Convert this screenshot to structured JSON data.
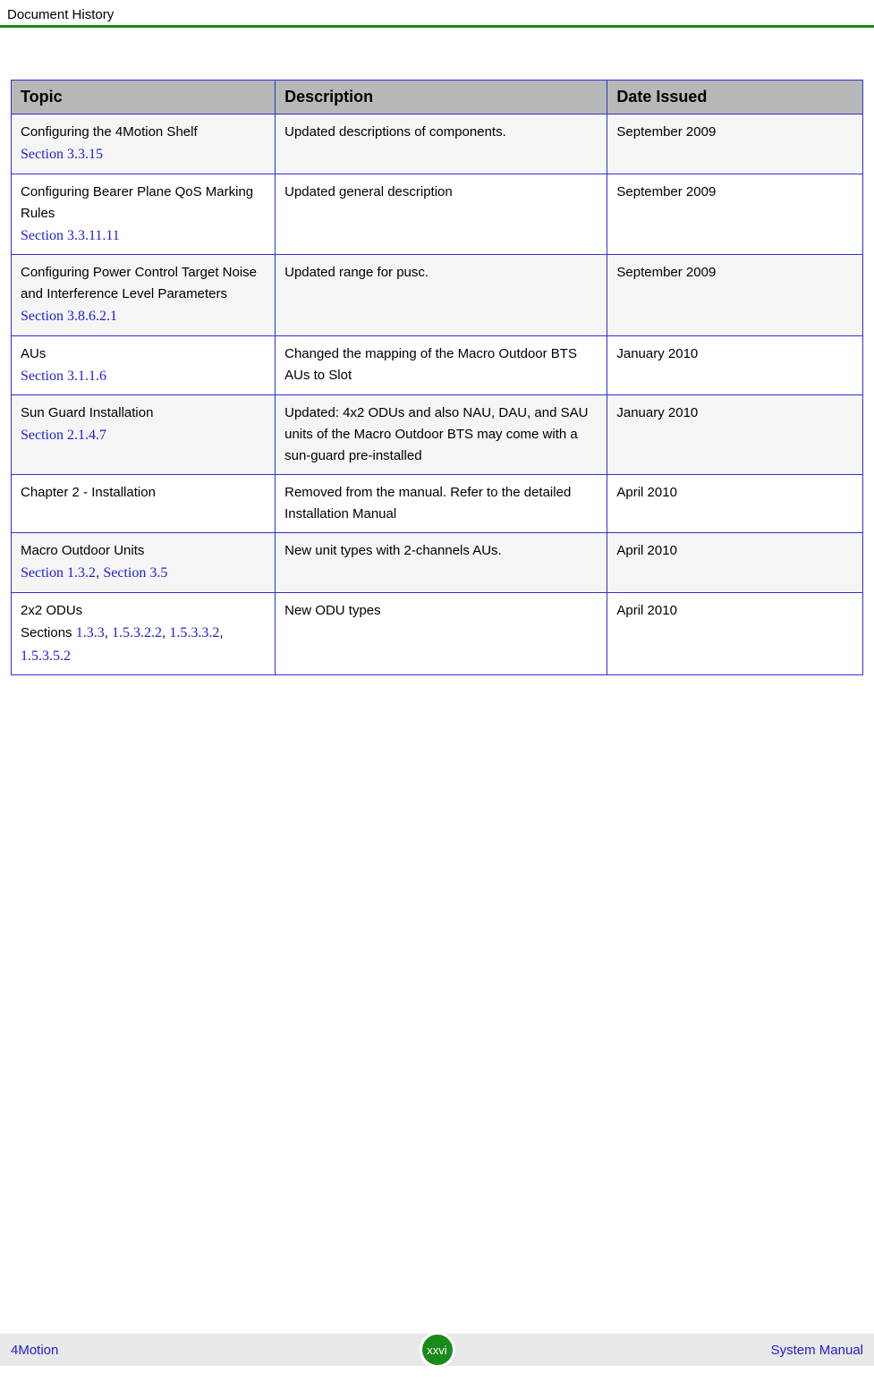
{
  "header": {
    "title": "Document History"
  },
  "table": {
    "headers": {
      "topic": "Topic",
      "description": "Description",
      "date": "Date Issued"
    },
    "rows": [
      {
        "topic_text": "Configuring the 4Motion Shelf",
        "section_links": [
          "Section 3.3.15"
        ],
        "description": "Updated descriptions of components.",
        "date": "September 2009"
      },
      {
        "topic_text": "Configuring Bearer Plane QoS Marking Rules",
        "section_links": [
          "Section 3.3.11.11"
        ],
        "description": "Updated general description",
        "date": "September 2009"
      },
      {
        "topic_text": "Configuring Power Control Target Noise and Interference Level Parameters",
        "section_links": [
          "Section 3.8.6.2.1"
        ],
        "description": "Updated range for pusc.",
        "date": "September 2009"
      },
      {
        "topic_text": "AUs",
        "section_links": [
          "Section 3.1.1.6"
        ],
        "description": "Changed the mapping of the Macro Outdoor BTS AUs to Slot",
        "date": "January 2010"
      },
      {
        "topic_text": "Sun Guard Installation",
        "section_links": [
          "Section 2.1.4.7"
        ],
        "description": "Updated: 4x2 ODUs and also NAU, DAU, and SAU units of the Macro Outdoor BTS may come with a sun-guard pre-installed",
        "date": "January 2010"
      },
      {
        "topic_text": "Chapter 2 - Installation",
        "section_links": [],
        "description": "Removed from the manual. Refer to the detailed Installation Manual",
        "date": "April 2010"
      },
      {
        "topic_text": "Macro Outdoor Units",
        "section_links": [
          "Section 1.3.2",
          "Section 3.5"
        ],
        "sections_join": ", ",
        "description": "New unit types with 2-channels AUs.",
        "date": "April 2010"
      },
      {
        "topic_text": "2x2 ODUs",
        "sections_prefix": "Sections  ",
        "section_links": [
          "1.3.3",
          "1.5.3.2.2",
          "1.5.3.3.2",
          "1.5.3.5.2"
        ],
        "sections_join": ",  ",
        "description": "New ODU types",
        "date": "April 2010"
      }
    ]
  },
  "footer": {
    "left": "4Motion",
    "page_number": "xxvi",
    "right": "System Manual"
  },
  "colors": {
    "header_rule": "#1a8a1a",
    "table_border": "#3030d0",
    "table_header_bg": "#b8b8b8",
    "link_color": "#2020d0",
    "footer_bg": "#e8e8e8",
    "badge_bg": "#1a8a1a",
    "row_shaded_bg": "#f5f5f5"
  }
}
